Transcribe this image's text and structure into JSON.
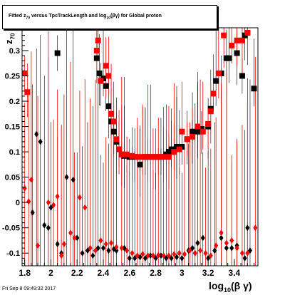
{
  "footer_text": "Fri Sep  8 09:49:32 2017",
  "colors": {
    "red": "#ff0000",
    "black": "#000000",
    "frame": "#000000"
  },
  "chart_data": {
    "type": "scatter",
    "title_parts": {
      "pre": "Fitted  z",
      "sub1": "70",
      "mid": " versus TpcTrackLength and log",
      "sub2": "10",
      "post": "(βγ) for Global proton"
    },
    "ylabel_parts": {
      "main": "z",
      "sub": "70"
    },
    "xlabel_parts": {
      "pre": "log",
      "sub": "10",
      "post": "(β γ)"
    },
    "xlim": [
      1.78,
      3.58
    ],
    "ylim": [
      -0.125,
      0.345
    ],
    "x_ticks": [
      1.8,
      2,
      2.2,
      2.4,
      2.6,
      2.8,
      3,
      3.2,
      3.4
    ],
    "x_tick_labels": [
      "1.8",
      "2",
      "2.2",
      "2.4",
      "2.6",
      "2.8",
      "3",
      "3.2",
      "3.4"
    ],
    "y_ticks": [
      -0.1,
      -0.05,
      0,
      0.05,
      0.1,
      0.15,
      0.2,
      0.25,
      0.3
    ],
    "y_tick_labels": [
      "-0.1",
      "-0.05",
      "0",
      "0.05",
      "0.1",
      "0.15",
      "0.2",
      "0.25",
      "0.3"
    ],
    "series": [
      {
        "marker": "square",
        "color": "#000000",
        "points": [
          [
            2.05,
            0.295
          ],
          [
            2.35,
            0.285
          ],
          [
            2.37,
            0.255
          ],
          [
            2.4,
            0.245
          ],
          [
            2.42,
            0.23
          ],
          [
            2.44,
            0.19
          ],
          [
            2.46,
            0.16
          ],
          [
            2.48,
            0.14
          ],
          [
            2.5,
            0.12
          ],
          [
            2.52,
            0.105
          ],
          [
            2.54,
            0.095
          ],
          [
            2.56,
            0.092
          ],
          [
            2.6,
            0.09
          ],
          [
            2.64,
            0.09
          ],
          [
            2.68,
            0.075
          ],
          [
            2.72,
            0.09
          ],
          [
            2.76,
            0.09
          ],
          [
            2.8,
            0.09
          ],
          [
            2.84,
            0.09
          ],
          [
            2.88,
            0.095
          ],
          [
            2.9,
            0.1
          ],
          [
            2.92,
            0.105
          ],
          [
            2.94,
            0.1
          ],
          [
            2.96,
            0.11
          ],
          [
            3.0,
            0.11
          ],
          [
            3.04,
            0.125
          ],
          [
            3.08,
            0.14
          ],
          [
            3.12,
            0.14
          ],
          [
            3.15,
            0.145
          ],
          [
            3.2,
            0.15
          ],
          [
            3.22,
            0.185
          ],
          [
            3.26,
            0.24
          ],
          [
            3.3,
            0.255
          ],
          [
            3.34,
            0.285
          ],
          [
            3.36,
            0.285
          ],
          [
            3.42,
            0.295
          ],
          [
            3.46,
            0.25
          ],
          [
            3.48,
            0.33
          ],
          [
            3.5,
            0.335
          ],
          [
            3.55,
            0.225
          ]
        ]
      },
      {
        "marker": "square",
        "color": "#ff0000",
        "points": [
          [
            1.8,
            0.255
          ],
          [
            1.82,
            0.218
          ],
          [
            2.35,
            0.3
          ],
          [
            2.36,
            0.32
          ],
          [
            2.38,
            0.24
          ],
          [
            2.42,
            0.27
          ],
          [
            2.44,
            0.25
          ],
          [
            2.46,
            0.175
          ],
          [
            2.48,
            0.16
          ],
          [
            2.5,
            0.125
          ],
          [
            2.52,
            0.105
          ],
          [
            2.54,
            0.095
          ],
          [
            2.58,
            0.095
          ],
          [
            2.62,
            0.092
          ],
          [
            2.66,
            0.09
          ],
          [
            2.7,
            0.09
          ],
          [
            2.74,
            0.09
          ],
          [
            2.78,
            0.09
          ],
          [
            2.82,
            0.09
          ],
          [
            2.86,
            0.09
          ],
          [
            2.9,
            0.09
          ],
          [
            2.94,
            0.1
          ],
          [
            2.98,
            0.105
          ],
          [
            3.0,
            0.14
          ],
          [
            3.04,
            0.125
          ],
          [
            3.08,
            0.13
          ],
          [
            3.12,
            0.15
          ],
          [
            3.16,
            0.14
          ],
          [
            3.2,
            0.155
          ],
          [
            3.22,
            0.18
          ],
          [
            3.24,
            0.215
          ],
          [
            3.28,
            0.255
          ],
          [
            3.32,
            0.33
          ],
          [
            3.38,
            0.31
          ],
          [
            3.42,
            0.32
          ],
          [
            3.46,
            0.32
          ],
          [
            3.5,
            0.335
          ]
        ]
      },
      {
        "marker": "diamond",
        "color": "#000000",
        "points": [
          [
            1.89,
            0.135
          ],
          [
            1.92,
            0.12
          ],
          [
            1.86,
            -0.02
          ],
          [
            1.95,
            -0.045
          ],
          [
            1.98,
            -0.05
          ],
          [
            2.0,
            -0.01
          ],
          [
            2.05,
            -0.082
          ],
          [
            2.08,
            -0.1
          ],
          [
            2.12,
            0.05
          ],
          [
            2.17,
            0.045
          ],
          [
            2.2,
            -0.07
          ],
          [
            2.24,
            -0.1
          ],
          [
            2.28,
            -0.095
          ],
          [
            2.32,
            -0.105
          ],
          [
            2.36,
            -0.09
          ],
          [
            2.4,
            -0.09
          ],
          [
            2.44,
            -0.095
          ],
          [
            2.48,
            -0.092
          ],
          [
            2.5,
            -0.095
          ],
          [
            2.56,
            -0.09
          ],
          [
            2.6,
            -0.11
          ],
          [
            2.64,
            -0.11
          ],
          [
            2.68,
            -0.108
          ],
          [
            2.72,
            -0.11
          ],
          [
            2.76,
            -0.105
          ],
          [
            2.8,
            -0.11
          ],
          [
            2.84,
            -0.105
          ],
          [
            2.88,
            -0.11
          ],
          [
            2.92,
            -0.11
          ],
          [
            2.96,
            -0.108
          ],
          [
            3.0,
            -0.11
          ],
          [
            3.05,
            -0.095
          ],
          [
            3.08,
            -0.09
          ],
          [
            3.1,
            -0.1
          ],
          [
            3.12,
            -0.08
          ],
          [
            3.16,
            -0.07
          ],
          [
            3.2,
            -0.11
          ],
          [
            3.25,
            -0.095
          ],
          [
            3.3,
            -0.07
          ],
          [
            3.34,
            -0.09
          ],
          [
            3.38,
            -0.09
          ],
          [
            3.42,
            -0.085
          ],
          [
            3.48,
            -0.11
          ],
          [
            3.5,
            -0.05
          ],
          [
            3.52,
            -0.095
          ]
        ]
      },
      {
        "marker": "diamond",
        "color": "#ff0000",
        "points": [
          [
            1.8,
            0.028
          ],
          [
            1.83,
            0.002
          ],
          [
            1.85,
            0.045
          ],
          [
            1.9,
            -0.085
          ],
          [
            1.98,
            0.0
          ],
          [
            2.02,
            -0.005
          ],
          [
            2.05,
            0.012
          ],
          [
            2.08,
            -0.105
          ],
          [
            2.1,
            -0.082
          ],
          [
            2.15,
            -0.06
          ],
          [
            2.18,
            -0.07
          ],
          [
            2.22,
            0.01
          ],
          [
            2.26,
            -0.01
          ],
          [
            2.3,
            -0.09
          ],
          [
            2.34,
            -0.095
          ],
          [
            2.38,
            -0.075
          ],
          [
            2.42,
            -0.082
          ],
          [
            2.46,
            -0.08
          ],
          [
            2.5,
            -0.088
          ],
          [
            2.54,
            -0.09
          ],
          [
            2.58,
            -0.095
          ],
          [
            2.62,
            -0.1
          ],
          [
            2.66,
            -0.105
          ],
          [
            2.7,
            -0.102
          ],
          [
            2.74,
            -0.105
          ],
          [
            2.78,
            -0.105
          ],
          [
            2.82,
            -0.104
          ],
          [
            2.86,
            -0.105
          ],
          [
            2.9,
            -0.105
          ],
          [
            2.94,
            -0.102
          ],
          [
            2.98,
            -0.1
          ],
          [
            3.02,
            -0.102
          ],
          [
            3.06,
            -0.095
          ],
          [
            3.1,
            -0.1
          ],
          [
            3.14,
            -0.095
          ],
          [
            3.18,
            -0.1
          ],
          [
            3.22,
            -0.105
          ],
          [
            3.26,
            -0.085
          ],
          [
            3.3,
            -0.06
          ],
          [
            3.34,
            -0.08
          ],
          [
            3.38,
            -0.075
          ],
          [
            3.42,
            -0.09
          ],
          [
            3.46,
            -0.1
          ],
          [
            3.5,
            -0.1
          ],
          [
            3.56,
            -0.05
          ]
        ]
      }
    ]
  }
}
